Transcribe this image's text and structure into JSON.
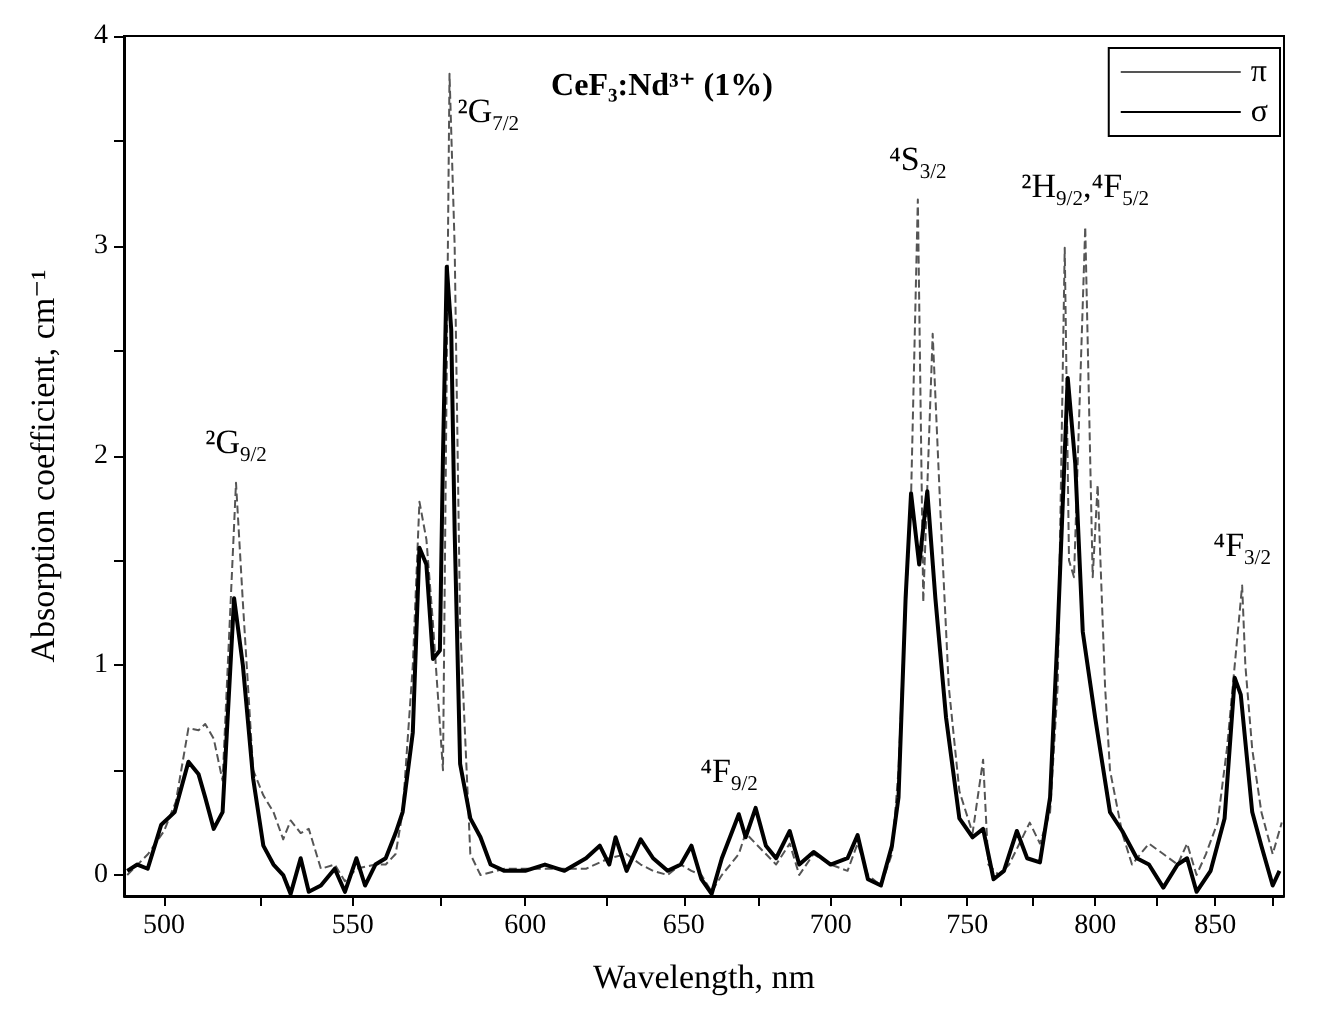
{
  "chart_data": {
    "type": "line",
    "title": "CeF₃:Nd³⁺ (1%)",
    "xlabel": "Wavelength, nm",
    "ylabel": "Absorption coefficient, cm⁻¹",
    "log": "x",
    "xlim": [
      490,
      880
    ],
    "ylim": [
      -0.1,
      4
    ],
    "xticks": [
      500,
      {
        "value": 525,
        "label": null
      },
      550,
      {
        "value": 575,
        "label": null
      },
      600,
      {
        "value": 625,
        "label": null
      },
      650,
      {
        "value": 675,
        "label": null
      },
      700,
      {
        "value": 725,
        "label": null
      },
      750,
      {
        "value": 775,
        "label": null
      },
      800,
      {
        "value": 825,
        "label": null
      },
      850,
      {
        "value": 875,
        "label": null
      }
    ],
    "yticks": [
      0,
      {
        "value": 0.5,
        "label": null
      },
      1,
      {
        "value": 1.5,
        "label": null
      },
      2,
      {
        "value": 2.5,
        "label": null
      },
      3,
      {
        "value": 3.5,
        "label": null
      },
      4
    ],
    "grid": false,
    "legend": "top right",
    "marker": "none",
    "annotations": [
      {
        "text": "²G$_{9/2}$",
        "x": 518.5,
        "y": 1.87
      },
      {
        "text": "²G$_{7/2}$",
        "x": 577.5,
        "y": 3.82
      },
      {
        "text": "⁴F$_{9/2}$",
        "x": 665,
        "y": 0.3
      },
      {
        "text": "⁴S$_{3/2}$",
        "x": 731.5,
        "y": 3.22
      },
      {
        "text": "²H$_{9/2}$,⁴F$_{5/2}$",
        "x": 796,
        "y": 3.09
      },
      {
        "text": "⁴F$_{3/2}$",
        "x": 861.6,
        "y": 1.38
      }
    ],
    "series": [
      {
        "name": "π",
        "color": "#555555",
        "line_style": "dashed",
        "x": [
          490.8,
          496,
          500,
          503,
          506.2,
          508.8,
          510.5,
          512.7,
          515,
          518.5,
          520.3,
          523,
          525.7,
          528.4,
          531,
          533,
          535.7,
          537.9,
          541.2,
          545,
          547.8,
          551,
          556.3,
          559.2,
          562,
          564,
          566.9,
          568.8,
          570.8,
          572.7,
          575.6,
          577.5,
          579,
          580.6,
          583.6,
          586.6,
          593.7,
          600,
          606,
          612,
          618.7,
          626,
          631.5,
          636,
          640,
          644.7,
          649,
          652.5,
          655.8,
          659.2,
          662.6,
          668.3,
          670.6,
          674,
          677.5,
          681,
          685.7,
          689,
          694,
          700,
          706,
          709.6,
          713.3,
          718,
          722,
          724.4,
          726,
          729,
          731.5,
          733.5,
          737,
          740,
          743,
          747,
          752,
          756,
          758,
          762,
          766,
          770,
          774,
          778,
          782,
          785,
          787.8,
          789.5,
          791.5,
          796,
          799,
          801,
          804,
          806,
          811,
          815,
          822,
          828,
          834,
          838,
          842,
          846,
          851,
          855,
          861.6,
          863,
          866,
          870,
          875,
          879
        ],
        "values": [
          0,
          0.1,
          0.21,
          0.35,
          0.7,
          0.69,
          0.72,
          0.65,
          0.45,
          1.87,
          1.3,
          0.5,
          0.38,
          0.3,
          0.17,
          0.26,
          0.2,
          0.22,
          0.03,
          0.05,
          -0.03,
          0.03,
          0.05,
          0.05,
          0.1,
          0.3,
          1.0,
          1.78,
          1.6,
          1.2,
          0.5,
          3.82,
          3.0,
          1.2,
          0.1,
          0,
          0.03,
          0.03,
          0.03,
          0.03,
          0.03,
          0.08,
          0.1,
          0.05,
          0.02,
          0,
          0.05,
          0.02,
          0,
          -0.08,
          0,
          0.1,
          0.2,
          0.15,
          0.1,
          0.05,
          0.15,
          0,
          0.1,
          0.05,
          0.02,
          0.15,
          0,
          -0.05,
          0.1,
          0.5,
          1.0,
          1.8,
          3.22,
          1.3,
          2.58,
          1.7,
          0.9,
          0.4,
          0.2,
          0.55,
          0.05,
          0,
          0.05,
          0.15,
          0.25,
          0.15,
          0.3,
          0.9,
          2.99,
          1.5,
          1.42,
          3.09,
          1.42,
          1.86,
          0.9,
          0.5,
          0.2,
          0.05,
          0.15,
          0.1,
          0.05,
          0.15,
          0,
          0.1,
          0.25,
          0.6,
          1.38,
          1.0,
          0.6,
          0.3,
          0.1,
          0.25
        ]
      },
      {
        "name": "σ",
        "color": "#000000",
        "line_style": "solid",
        "x": [
          490.8,
          493.3,
          495.9,
          499.3,
          502.7,
          506.2,
          508.8,
          510.5,
          512.7,
          515,
          518,
          520.3,
          523,
          525.7,
          528.4,
          531,
          533,
          535.7,
          537.9,
          541.2,
          545,
          547.8,
          551,
          553.4,
          556.3,
          559.2,
          562,
          564,
          566.9,
          568.8,
          570.8,
          572.7,
          574.7,
          575.6,
          576.7,
          578,
          579,
          580.6,
          583.6,
          586.6,
          589.6,
          593.7,
          600,
          606,
          612,
          618.7,
          623,
          626,
          628,
          631.5,
          636,
          640,
          644.7,
          649,
          652.5,
          655.8,
          659.2,
          662.6,
          668.3,
          670.6,
          674,
          677.5,
          681,
          685.7,
          689,
          694,
          700,
          706,
          709.6,
          713.3,
          718,
          722,
          724.4,
          727,
          729,
          732,
          735,
          738,
          742,
          747,
          752,
          756,
          760,
          764,
          769,
          773,
          778,
          782,
          785,
          789,
          792,
          795,
          800,
          806,
          811,
          817,
          822,
          828,
          834,
          838,
          842,
          848,
          854,
          858.4,
          861,
          866,
          870,
          875,
          878
        ],
        "values": [
          0.02,
          0.05,
          0.03,
          0.24,
          0.3,
          0.54,
          0.48,
          0.37,
          0.22,
          0.3,
          1.32,
          1.0,
          0.46,
          0.14,
          0.05,
          0,
          -0.09,
          0.08,
          -0.08,
          -0.05,
          0.03,
          -0.08,
          0.08,
          -0.05,
          0.05,
          0.08,
          0.2,
          0.3,
          0.68,
          1.56,
          1.48,
          1.03,
          1.07,
          2.0,
          2.9,
          2.6,
          1.64,
          0.53,
          0.27,
          0.18,
          0.05,
          0.02,
          0.02,
          0.05,
          0.02,
          0.08,
          0.14,
          0.05,
          0.18,
          0.02,
          0.17,
          0.08,
          0.02,
          0.05,
          0.14,
          -0.02,
          -0.09,
          0.08,
          0.29,
          0.18,
          0.32,
          0.14,
          0.08,
          0.21,
          0.05,
          0.11,
          0.05,
          0.08,
          0.19,
          -0.02,
          -0.05,
          0.14,
          0.37,
          1.32,
          1.82,
          1.48,
          1.83,
          1.32,
          0.75,
          0.27,
          0.18,
          0.22,
          -0.02,
          0.02,
          0.21,
          0.08,
          0.06,
          0.37,
          1.16,
          2.37,
          1.96,
          1.16,
          0.75,
          0.3,
          0.21,
          0.08,
          0.05,
          -0.06,
          0.05,
          0.08,
          -0.08,
          0.02,
          0.27,
          0.94,
          0.86,
          0.3,
          0.14,
          -0.05,
          0.02
        ]
      }
    ]
  }
}
